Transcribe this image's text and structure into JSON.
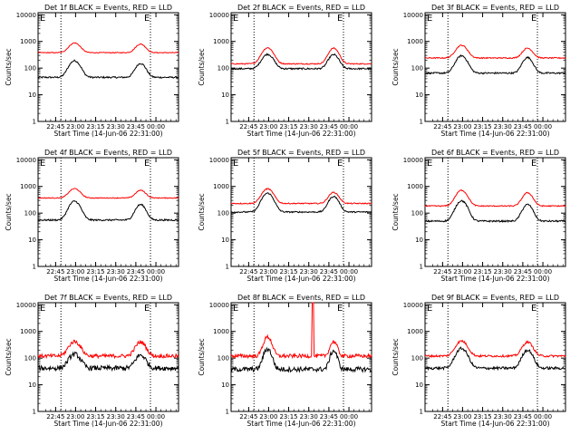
{
  "chart_data": [
    {
      "type": "line",
      "title": "Det 1f BLACK = Events, RED = LLD",
      "xlabel": "Start Time (14-Jun-06 22:31:00)",
      "ylabel": "Counts/sec",
      "x_ticks": [
        "22:45",
        "23:00",
        "23:15",
        "23:30",
        "23:45",
        "00:00"
      ],
      "y_ticks": [
        "1",
        "10",
        "100",
        "1000",
        "10000"
      ],
      "ylim": [
        1,
        12000
      ],
      "y_scale": "log",
      "grid": false,
      "corner_marks": [
        "E",
        "E"
      ],
      "series": [
        {
          "color": "#000000",
          "base": 45,
          "peak1": 190,
          "peak2": 150,
          "noise": 0.03,
          "sharp": false,
          "spike": false
        },
        {
          "color": "#ff0000",
          "base": 380,
          "peak1": 880,
          "peak2": 800,
          "noise": 0.015,
          "sharp": false,
          "spike": false
        }
      ]
    },
    {
      "type": "line",
      "title": "Det 2f BLACK = Events, RED = LLD",
      "xlabel": "Start Time (14-Jun-06 22:31:00)",
      "ylabel": "Counts/sec",
      "x_ticks": [
        "22:45",
        "23:00",
        "23:15",
        "23:30",
        "23:45",
        "00:00"
      ],
      "y_ticks": [
        "1",
        "10",
        "100",
        "1000",
        "10000"
      ],
      "ylim": [
        1,
        12000
      ],
      "y_scale": "log",
      "grid": false,
      "corner_marks": [
        "E",
        "E"
      ],
      "series": [
        {
          "color": "#000000",
          "base": 95,
          "peak1": 330,
          "peak2": 320,
          "noise": 0.03,
          "sharp": false,
          "spike": false
        },
        {
          "color": "#ff0000",
          "base": 145,
          "peak1": 580,
          "peak2": 560,
          "noise": 0.02,
          "sharp": false,
          "spike": false
        }
      ]
    },
    {
      "type": "line",
      "title": "Det 3f BLACK = Events, RED = LLD",
      "xlabel": "Start Time (14-Jun-06 22:31:00)",
      "ylabel": "Counts/sec",
      "x_ticks": [
        "22:45",
        "23:00",
        "23:15",
        "23:30",
        "23:45",
        "00:00"
      ],
      "y_ticks": [
        "1",
        "10",
        "100",
        "1000",
        "10000"
      ],
      "ylim": [
        1,
        12000
      ],
      "y_scale": "log",
      "grid": false,
      "corner_marks": [
        "E",
        "E"
      ],
      "series": [
        {
          "color": "#000000",
          "base": 65,
          "peak1": 290,
          "peak2": 250,
          "noise": 0.03,
          "sharp": false,
          "spike": false
        },
        {
          "color": "#ff0000",
          "base": 240,
          "peak1": 720,
          "peak2": 560,
          "noise": 0.02,
          "sharp": false,
          "spike": false
        }
      ]
    },
    {
      "type": "line",
      "title": "Det 4f BLACK = Events, RED = LLD",
      "xlabel": "Start Time (14-Jun-06 22:31:00)",
      "ylabel": "Counts/sec",
      "x_ticks": [
        "22:45",
        "23:00",
        "23:15",
        "23:30",
        "23:45",
        "00:00"
      ],
      "y_ticks": [
        "1",
        "10",
        "100",
        "1000",
        "10000"
      ],
      "ylim": [
        1,
        12000
      ],
      "y_scale": "log",
      "grid": false,
      "corner_marks": [
        "E",
        "E"
      ],
      "series": [
        {
          "color": "#000000",
          "base": 55,
          "peak1": 280,
          "peak2": 210,
          "noise": 0.03,
          "sharp": false,
          "spike": false
        },
        {
          "color": "#ff0000",
          "base": 370,
          "peak1": 830,
          "peak2": 720,
          "noise": 0.015,
          "sharp": false,
          "spike": false
        }
      ]
    },
    {
      "type": "line",
      "title": "Det 5f BLACK = Events, RED = LLD",
      "xlabel": "Start Time (14-Jun-06 22:31:00)",
      "ylabel": "Counts/sec",
      "x_ticks": [
        "22:45",
        "23:00",
        "23:15",
        "23:30",
        "23:45",
        "00:00"
      ],
      "y_ticks": [
        "1",
        "10",
        "100",
        "1000",
        "10000"
      ],
      "ylim": [
        1,
        12000
      ],
      "y_scale": "log",
      "grid": false,
      "corner_marks": [
        "E",
        "E"
      ],
      "series": [
        {
          "color": "#000000",
          "base": 110,
          "peak1": 560,
          "peak2": 420,
          "noise": 0.025,
          "sharp": false,
          "spike": false
        },
        {
          "color": "#ff0000",
          "base": 230,
          "peak1": 820,
          "peak2": 600,
          "noise": 0.02,
          "sharp": false,
          "spike": false
        }
      ]
    },
    {
      "type": "line",
      "title": "Det 6f BLACK = Events, RED = LLD",
      "xlabel": "Start Time (14-Jun-06 22:31:00)",
      "ylabel": "Counts/sec",
      "x_ticks": [
        "22:45",
        "23:00",
        "23:15",
        "23:30",
        "23:45",
        "00:00"
      ],
      "y_ticks": [
        "1",
        "10",
        "100",
        "1000",
        "10000"
      ],
      "ylim": [
        1,
        12000
      ],
      "y_scale": "log",
      "grid": false,
      "corner_marks": [
        "E",
        "E"
      ],
      "series": [
        {
          "color": "#000000",
          "base": 50,
          "peak1": 290,
          "peak2": 210,
          "noise": 0.03,
          "sharp": false,
          "spike": false
        },
        {
          "color": "#ff0000",
          "base": 185,
          "peak1": 720,
          "peak2": 580,
          "noise": 0.02,
          "sharp": false,
          "spike": false
        }
      ]
    },
    {
      "type": "line",
      "title": "Det 7f BLACK = Events, RED = LLD",
      "xlabel": "Start Time (14-Jun-06 22:31:00)",
      "ylabel": "Counts/sec",
      "x_ticks": [
        "22:45",
        "23:00",
        "23:15",
        "23:30",
        "23:45",
        "00:00"
      ],
      "y_ticks": [
        "1",
        "10",
        "100",
        "1000",
        "10000"
      ],
      "ylim": [
        1,
        12000
      ],
      "y_scale": "log",
      "grid": false,
      "corner_marks": [
        "E",
        "E"
      ],
      "series": [
        {
          "color": "#000000",
          "base": 42,
          "peak1": 140,
          "peak2": 130,
          "noise": 0.09,
          "sharp": false,
          "spike": false
        },
        {
          "color": "#ff0000",
          "base": 120,
          "peak1": 420,
          "peak2": 400,
          "noise": 0.07,
          "sharp": false,
          "spike": false
        }
      ]
    },
    {
      "type": "line",
      "title": "Det 8f BLACK = Events, RED = LLD",
      "xlabel": "Start Time (14-Jun-06 22:31:00)",
      "ylabel": "Counts/sec",
      "x_ticks": [
        "22:45",
        "23:00",
        "23:15",
        "23:30",
        "23:45",
        "00:00"
      ],
      "y_ticks": [
        "1",
        "10",
        "100",
        "1000",
        "10000"
      ],
      "ylim": [
        1,
        12000
      ],
      "y_scale": "log",
      "grid": false,
      "corner_marks": [
        "E",
        "E"
      ],
      "series": [
        {
          "color": "#000000",
          "base": 38,
          "peak1": 220,
          "peak2": 190,
          "noise": 0.09,
          "sharp": true,
          "spike": false
        },
        {
          "color": "#ff0000",
          "base": 120,
          "peak1": 620,
          "peak2": 420,
          "noise": 0.07,
          "sharp": true,
          "spike": true
        }
      ]
    },
    {
      "type": "line",
      "title": "Det 9f BLACK = Events, RED = LLD",
      "xlabel": "Start Time (14-Jun-06 22:31:00)",
      "ylabel": "Counts/sec",
      "x_ticks": [
        "22:45",
        "23:00",
        "23:15",
        "23:30",
        "23:45",
        "00:00"
      ],
      "y_ticks": [
        "1",
        "10",
        "100",
        "1000",
        "10000"
      ],
      "ylim": [
        1,
        12000
      ],
      "y_scale": "log",
      "grid": false,
      "corner_marks": [
        "E",
        "E"
      ],
      "series": [
        {
          "color": "#000000",
          "base": 42,
          "peak1": 230,
          "peak2": 200,
          "noise": 0.05,
          "sharp": false,
          "spike": false
        },
        {
          "color": "#ff0000",
          "base": 120,
          "peak1": 440,
          "peak2": 400,
          "noise": 0.04,
          "sharp": false,
          "spike": false
        }
      ]
    }
  ]
}
